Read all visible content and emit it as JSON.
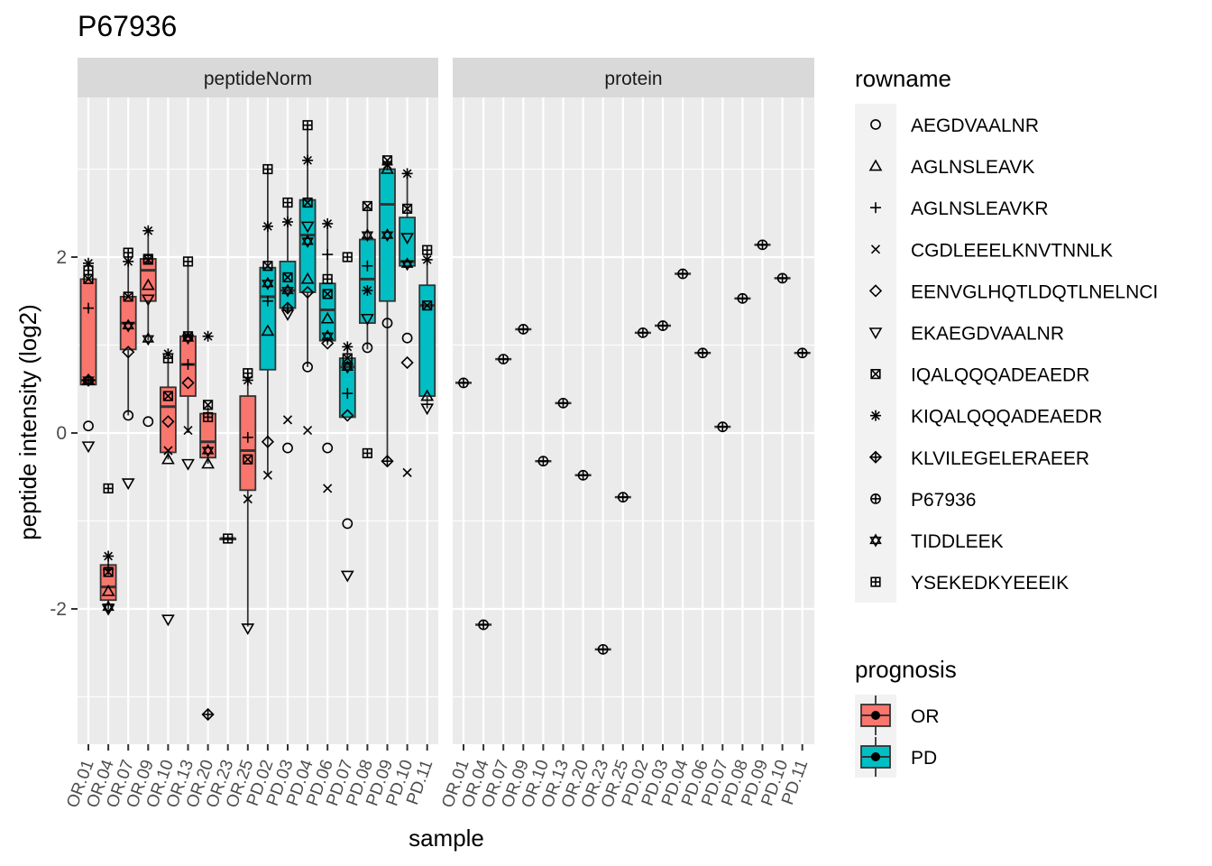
{
  "chart_data": {
    "type": "boxplot",
    "title": "P67936",
    "xlabel": "sample",
    "ylabel": "peptide intensity (log2)",
    "ylim": [
      -3.5,
      3.8
    ],
    "yticks": [
      -2,
      0,
      2
    ],
    "grid": true,
    "legend_position": "right",
    "samples": [
      "OR.01",
      "OR.04",
      "OR.07",
      "OR.09",
      "OR.10",
      "OR.13",
      "OR.20",
      "OR.23",
      "OR.25",
      "PD.02",
      "PD.03",
      "PD.04",
      "PD.06",
      "PD.07",
      "PD.08",
      "PD.09",
      "PD.10",
      "PD.11"
    ],
    "sample_prognosis": [
      "OR",
      "OR",
      "OR",
      "OR",
      "OR",
      "OR",
      "OR",
      "OR",
      "OR",
      "PD",
      "PD",
      "PD",
      "PD",
      "PD",
      "PD",
      "PD",
      "PD",
      "PD"
    ],
    "prognosis_colors": {
      "OR": "#F8766D",
      "PD": "#00BFC4"
    },
    "legend_rowname_title": "rowname",
    "legend_prognosis_title": "prognosis",
    "rownames": [
      {
        "label": "AEGDVAALNR",
        "shape": "circle"
      },
      {
        "label": "AGLNSLEAVK",
        "shape": "triangle"
      },
      {
        "label": "AGLNSLEAVKR",
        "shape": "plus"
      },
      {
        "label": "CGDLEEELKNVTNNLK",
        "shape": "cross"
      },
      {
        "label": "EENVGLHQTLDQTLNELNCI",
        "shape": "diamond"
      },
      {
        "label": "EKAEGDVAALNR",
        "shape": "triangle-down"
      },
      {
        "label": "IQALQQQADEAEDR",
        "shape": "square-cross"
      },
      {
        "label": "KIQALQQQADEAEDR",
        "shape": "asterisk"
      },
      {
        "label": "KLVILEGELERAEER",
        "shape": "diamond-plus"
      },
      {
        "label": "P67936",
        "shape": "circle-plus"
      },
      {
        "label": "TIDDLEEK",
        "shape": "star-of-david"
      },
      {
        "label": "YSEKEDKYEEEIK",
        "shape": "square-plus"
      }
    ],
    "prognosis_levels": [
      "OR",
      "PD"
    ],
    "panels": [
      {
        "name": "peptideNorm",
        "boxes": [
          {
            "sample": "OR.01",
            "q1": 0.55,
            "median": 0.6,
            "q3": 1.75,
            "whisker_low": 0.55,
            "whisker_high": 1.9
          },
          {
            "sample": "OR.04",
            "q1": -1.9,
            "median": -1.75,
            "q3": -1.5,
            "whisker_low": -2.0,
            "whisker_high": -1.4
          },
          {
            "sample": "OR.07",
            "q1": 0.95,
            "median": 1.25,
            "q3": 1.55,
            "whisker_low": 0.2,
            "whisker_high": 2.05
          },
          {
            "sample": "OR.09",
            "q1": 1.5,
            "median": 1.85,
            "q3": 1.98,
            "whisker_low": 1.05,
            "whisker_high": 2.3
          },
          {
            "sample": "OR.10",
            "q1": -0.22,
            "median": 0.3,
            "q3": 0.52,
            "whisker_low": -0.3,
            "whisker_high": 0.9
          },
          {
            "sample": "OR.13",
            "q1": 0.42,
            "median": 0.78,
            "q3": 1.1,
            "whisker_low": 0.0,
            "whisker_high": 1.95
          },
          {
            "sample": "OR.20",
            "q1": -0.28,
            "median": -0.1,
            "q3": 0.22,
            "whisker_low": -0.35,
            "whisker_high": 0.32
          },
          {
            "sample": "OR.23",
            "q1": -1.2,
            "median": -1.2,
            "q3": -1.2,
            "whisker_low": -1.2,
            "whisker_high": -1.2
          },
          {
            "sample": "OR.25",
            "q1": -0.65,
            "median": -0.2,
            "q3": 0.42,
            "whisker_low": -2.2,
            "whisker_high": 0.68
          },
          {
            "sample": "PD.02",
            "q1": 0.72,
            "median": 1.55,
            "q3": 1.88,
            "whisker_low": -0.48,
            "whisker_high": 3.0
          },
          {
            "sample": "PD.03",
            "q1": 1.42,
            "median": 1.62,
            "q3": 1.95,
            "whisker_low": 1.35,
            "whisker_high": 2.6
          },
          {
            "sample": "PD.04",
            "q1": 1.6,
            "median": 2.25,
            "q3": 2.65,
            "whisker_low": 0.75,
            "whisker_high": 3.5
          },
          {
            "sample": "PD.06",
            "q1": 1.05,
            "median": 1.4,
            "q3": 1.7,
            "whisker_low": 1.0,
            "whisker_high": 2.38
          },
          {
            "sample": "PD.07",
            "q1": 0.18,
            "median": 0.75,
            "q3": 0.85,
            "whisker_low": 0.18,
            "whisker_high": 1.0
          },
          {
            "sample": "PD.08",
            "q1": 1.25,
            "median": 1.75,
            "q3": 2.2,
            "whisker_low": 0.95,
            "whisker_high": 2.58
          },
          {
            "sample": "PD.09",
            "q1": 1.5,
            "median": 2.6,
            "q3": 3.0,
            "whisker_low": -0.32,
            "whisker_high": 3.1
          },
          {
            "sample": "PD.10",
            "q1": 1.9,
            "median": 1.95,
            "q3": 2.45,
            "whisker_low": 1.9,
            "whisker_high": 2.95
          },
          {
            "sample": "PD.11",
            "q1": 0.42,
            "median": 1.45,
            "q3": 1.68,
            "whisker_low": 0.28,
            "whisker_high": 2.08
          }
        ],
        "points": [
          {
            "sample": "OR.01",
            "shape": "circle",
            "y": 0.08
          },
          {
            "sample": "OR.01",
            "shape": "triangle",
            "y": 0.6
          },
          {
            "sample": "OR.01",
            "shape": "plus",
            "y": 1.42
          },
          {
            "sample": "OR.01",
            "shape": "triangle-down",
            "y": -0.15
          },
          {
            "sample": "OR.01",
            "shape": "square-cross",
            "y": 1.75
          },
          {
            "sample": "OR.01",
            "shape": "asterisk",
            "y": 1.93
          },
          {
            "sample": "OR.01",
            "shape": "diamond-plus",
            "y": 0.6
          },
          {
            "sample": "OR.01",
            "shape": "star-of-david",
            "y": 0.6
          },
          {
            "sample": "OR.01",
            "shape": "square-plus",
            "y": 1.85
          },
          {
            "sample": "OR.04",
            "shape": "triangle",
            "y": -1.8
          },
          {
            "sample": "OR.04",
            "shape": "plus",
            "y": -1.55
          },
          {
            "sample": "OR.04",
            "shape": "triangle-down",
            "y": -2.0
          },
          {
            "sample": "OR.04",
            "shape": "square-cross",
            "y": -1.58
          },
          {
            "sample": "OR.04",
            "shape": "asterisk",
            "y": -1.4
          },
          {
            "sample": "OR.04",
            "shape": "star-of-david",
            "y": -1.98
          },
          {
            "sample": "OR.04",
            "shape": "square-plus",
            "y": -0.63
          },
          {
            "sample": "OR.07",
            "shape": "circle",
            "y": 0.2
          },
          {
            "sample": "OR.07",
            "shape": "triangle-down",
            "y": -0.57
          },
          {
            "sample": "OR.07",
            "shape": "diamond",
            "y": 0.92
          },
          {
            "sample": "OR.07",
            "shape": "star-of-david",
            "y": 1.22
          },
          {
            "sample": "OR.07",
            "shape": "square-cross",
            "y": 1.55
          },
          {
            "sample": "OR.07",
            "shape": "asterisk",
            "y": 1.95
          },
          {
            "sample": "OR.07",
            "shape": "square-plus",
            "y": 2.05
          },
          {
            "sample": "OR.09",
            "shape": "circle",
            "y": 0.13
          },
          {
            "sample": "OR.09",
            "shape": "star-of-david",
            "y": 1.07
          },
          {
            "sample": "OR.09",
            "shape": "triangle-down",
            "y": 1.52
          },
          {
            "sample": "OR.09",
            "shape": "triangle",
            "y": 1.68
          },
          {
            "sample": "OR.09",
            "shape": "square-cross",
            "y": 1.97
          },
          {
            "sample": "OR.09",
            "shape": "square-plus",
            "y": 1.98
          },
          {
            "sample": "OR.09",
            "shape": "asterisk",
            "y": 2.3
          },
          {
            "sample": "OR.10",
            "shape": "triangle-down",
            "y": -2.12
          },
          {
            "sample": "OR.10",
            "shape": "triangle",
            "y": -0.3
          },
          {
            "sample": "OR.10",
            "shape": "cross",
            "y": -0.2
          },
          {
            "sample": "OR.10",
            "shape": "diamond",
            "y": 0.13
          },
          {
            "sample": "OR.10",
            "shape": "square-cross",
            "y": 0.42
          },
          {
            "sample": "OR.10",
            "shape": "square-plus",
            "y": 0.85
          },
          {
            "sample": "OR.10",
            "shape": "asterisk",
            "y": 0.9
          },
          {
            "sample": "OR.13",
            "shape": "triangle-down",
            "y": -0.35
          },
          {
            "sample": "OR.13",
            "shape": "cross",
            "y": 0.03
          },
          {
            "sample": "OR.13",
            "shape": "diamond",
            "y": 0.57
          },
          {
            "sample": "OR.13",
            "shape": "plus",
            "y": 0.78
          },
          {
            "sample": "OR.13",
            "shape": "star-of-david",
            "y": 1.08
          },
          {
            "sample": "OR.13",
            "shape": "square-cross",
            "y": 1.1
          },
          {
            "sample": "OR.13",
            "shape": "square-plus",
            "y": 1.95
          },
          {
            "sample": "OR.20",
            "shape": "diamond-plus",
            "y": -3.2
          },
          {
            "sample": "OR.20",
            "shape": "triangle",
            "y": -0.35
          },
          {
            "sample": "OR.20",
            "shape": "star-of-david",
            "y": -0.2
          },
          {
            "sample": "OR.20",
            "shape": "square-plus",
            "y": 0.18
          },
          {
            "sample": "OR.20",
            "shape": "square-cross",
            "y": 0.32
          },
          {
            "sample": "OR.20",
            "shape": "asterisk",
            "y": 1.1
          },
          {
            "sample": "OR.23",
            "shape": "square-plus",
            "y": -1.2
          },
          {
            "sample": "OR.25",
            "shape": "triangle-down",
            "y": -2.22
          },
          {
            "sample": "OR.25",
            "shape": "cross",
            "y": -0.75
          },
          {
            "sample": "OR.25",
            "shape": "square-cross",
            "y": -0.3
          },
          {
            "sample": "OR.25",
            "shape": "plus",
            "y": -0.05
          },
          {
            "sample": "OR.25",
            "shape": "asterisk",
            "y": 0.6
          },
          {
            "sample": "OR.25",
            "shape": "square-plus",
            "y": 0.68
          },
          {
            "sample": "PD.02",
            "shape": "cross",
            "y": -0.48
          },
          {
            "sample": "PD.02",
            "shape": "diamond",
            "y": -0.1
          },
          {
            "sample": "PD.02",
            "shape": "triangle",
            "y": 1.16
          },
          {
            "sample": "PD.02",
            "shape": "plus",
            "y": 1.5
          },
          {
            "sample": "PD.02",
            "shape": "star-of-david",
            "y": 1.7
          },
          {
            "sample": "PD.02",
            "shape": "square-cross",
            "y": 1.9
          },
          {
            "sample": "PD.02",
            "shape": "asterisk",
            "y": 2.35
          },
          {
            "sample": "PD.02",
            "shape": "square-plus",
            "y": 3.0
          },
          {
            "sample": "PD.03",
            "shape": "circle",
            "y": -0.17
          },
          {
            "sample": "PD.03",
            "shape": "cross",
            "y": 0.15
          },
          {
            "sample": "PD.03",
            "shape": "triangle-down",
            "y": 1.35
          },
          {
            "sample": "PD.03",
            "shape": "diamond-plus",
            "y": 1.42
          },
          {
            "sample": "PD.03",
            "shape": "star-of-david",
            "y": 1.62
          },
          {
            "sample": "PD.03",
            "shape": "square-cross",
            "y": 1.77
          },
          {
            "sample": "PD.03",
            "shape": "asterisk",
            "y": 2.4
          },
          {
            "sample": "PD.03",
            "shape": "square-plus",
            "y": 2.62
          },
          {
            "sample": "PD.04",
            "shape": "cross",
            "y": 0.03
          },
          {
            "sample": "PD.04",
            "shape": "circle",
            "y": 0.75
          },
          {
            "sample": "PD.04",
            "shape": "diamond",
            "y": 1.6
          },
          {
            "sample": "PD.04",
            "shape": "triangle",
            "y": 1.75
          },
          {
            "sample": "PD.04",
            "shape": "star-of-david",
            "y": 2.18
          },
          {
            "sample": "PD.04",
            "shape": "triangle-down",
            "y": 2.35
          },
          {
            "sample": "PD.04",
            "shape": "square-cross",
            "y": 2.62
          },
          {
            "sample": "PD.04",
            "shape": "asterisk",
            "y": 3.1
          },
          {
            "sample": "PD.04",
            "shape": "square-plus",
            "y": 3.5
          },
          {
            "sample": "PD.06",
            "shape": "cross",
            "y": -0.63
          },
          {
            "sample": "PD.06",
            "shape": "circle",
            "y": -0.17
          },
          {
            "sample": "PD.06",
            "shape": "diamond",
            "y": 1.02
          },
          {
            "sample": "PD.06",
            "shape": "star-of-david",
            "y": 1.1
          },
          {
            "sample": "PD.06",
            "shape": "triangle",
            "y": 1.3
          },
          {
            "sample": "PD.06",
            "shape": "square-cross",
            "y": 1.58
          },
          {
            "sample": "PD.06",
            "shape": "square-plus",
            "y": 1.75
          },
          {
            "sample": "PD.06",
            "shape": "plus",
            "y": 2.03
          },
          {
            "sample": "PD.06",
            "shape": "asterisk",
            "y": 2.38
          },
          {
            "sample": "PD.07",
            "shape": "triangle-down",
            "y": -1.62
          },
          {
            "sample": "PD.07",
            "shape": "circle",
            "y": -1.03
          },
          {
            "sample": "PD.07",
            "shape": "diamond",
            "y": 0.2
          },
          {
            "sample": "PD.07",
            "shape": "plus",
            "y": 0.45
          },
          {
            "sample": "PD.07",
            "shape": "star-of-david",
            "y": 0.75
          },
          {
            "sample": "PD.07",
            "shape": "square-cross",
            "y": 0.85
          },
          {
            "sample": "PD.07",
            "shape": "asterisk",
            "y": 0.98
          },
          {
            "sample": "PD.07",
            "shape": "square-plus",
            "y": 2.0
          },
          {
            "sample": "PD.08",
            "shape": "square-plus",
            "y": -0.23
          },
          {
            "sample": "PD.08",
            "shape": "circle",
            "y": 0.97
          },
          {
            "sample": "PD.08",
            "shape": "triangle-down",
            "y": 1.3
          },
          {
            "sample": "PD.08",
            "shape": "asterisk",
            "y": 1.62
          },
          {
            "sample": "PD.08",
            "shape": "plus",
            "y": 1.9
          },
          {
            "sample": "PD.08",
            "shape": "star-of-david",
            "y": 2.25
          },
          {
            "sample": "PD.08",
            "shape": "square-cross",
            "y": 2.58
          },
          {
            "sample": "PD.09",
            "shape": "diamond-plus",
            "y": -0.32
          },
          {
            "sample": "PD.09",
            "shape": "circle",
            "y": 1.25
          },
          {
            "sample": "PD.09",
            "shape": "star-of-david",
            "y": 2.25
          },
          {
            "sample": "PD.09",
            "shape": "triangle",
            "y": 3.0
          },
          {
            "sample": "PD.09",
            "shape": "asterisk",
            "y": 3.05
          },
          {
            "sample": "PD.09",
            "shape": "square-cross",
            "y": 3.1
          },
          {
            "sample": "PD.10",
            "shape": "cross",
            "y": -0.45
          },
          {
            "sample": "PD.10",
            "shape": "diamond",
            "y": 0.8
          },
          {
            "sample": "PD.10",
            "shape": "circle",
            "y": 1.08
          },
          {
            "sample": "PD.10",
            "shape": "star-of-david",
            "y": 1.92
          },
          {
            "sample": "PD.10",
            "shape": "triangle-down",
            "y": 2.22
          },
          {
            "sample": "PD.10",
            "shape": "square-cross",
            "y": 2.55
          },
          {
            "sample": "PD.10",
            "shape": "asterisk",
            "y": 2.95
          },
          {
            "sample": "PD.11",
            "shape": "triangle-down",
            "y": 0.28
          },
          {
            "sample": "PD.11",
            "shape": "triangle",
            "y": 0.42
          },
          {
            "sample": "PD.11",
            "shape": "square-cross",
            "y": 1.45
          },
          {
            "sample": "PD.11",
            "shape": "square-plus",
            "y": 2.08
          },
          {
            "sample": "PD.11",
            "shape": "asterisk",
            "y": 1.97
          }
        ]
      },
      {
        "name": "protein",
        "values": [
          0.57,
          -2.18,
          0.84,
          1.18,
          -0.32,
          0.34,
          -0.48,
          -2.46,
          -0.73,
          1.14,
          1.22,
          1.81,
          0.91,
          0.07,
          1.53,
          2.14,
          1.76,
          0.91
        ]
      }
    ]
  }
}
